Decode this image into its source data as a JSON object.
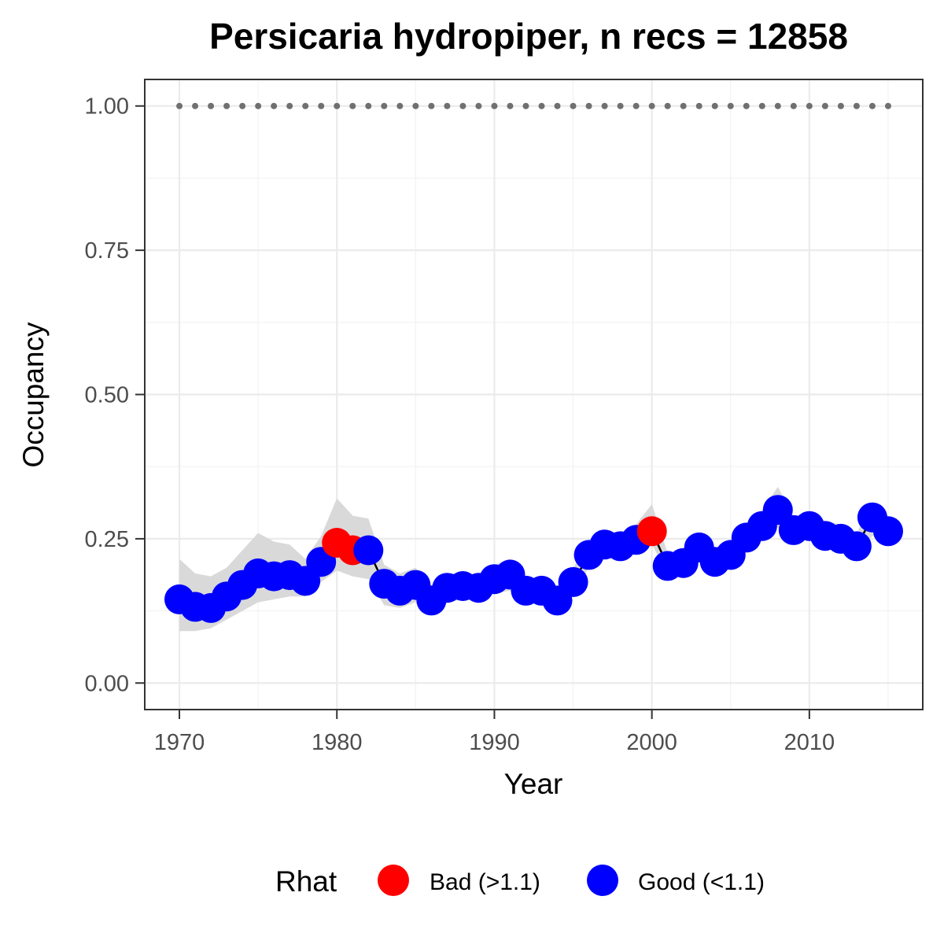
{
  "chart_data": {
    "type": "line",
    "title": "Persicaria hydropiper, n recs = 12858",
    "xlabel": "Year",
    "ylabel": "Occupancy",
    "xlim": [
      1967.8,
      2017.2
    ],
    "ylim": [
      -0.046,
      1.046
    ],
    "x_ticks": [
      1970,
      1980,
      1990,
      2000,
      2010
    ],
    "x_tick_labels": [
      "1970",
      "1980",
      "1990",
      "2000",
      "2010"
    ],
    "y_ticks": [
      0,
      0.25,
      0.5,
      0.75,
      1
    ],
    "y_tick_labels": [
      "0.00",
      "0.25",
      "0.50",
      "0.75",
      "1.00"
    ],
    "grid": true,
    "legend": {
      "title": "Rhat",
      "position": "bottom",
      "items": [
        {
          "label": "Bad (>1.1)",
          "color": "#ff0000"
        },
        {
          "label": "Good (<1.1)",
          "color": "#0000ff"
        }
      ]
    },
    "colors": {
      "bad": "#ff0000",
      "good": "#0000ff",
      "ribbon": "#d9d9d9",
      "line": "#000000",
      "reference": "#707070"
    },
    "reference_line": {
      "y": 1.0,
      "style": "dotted",
      "x": [
        1970,
        2015
      ]
    },
    "x": [
      1970,
      1971,
      1972,
      1973,
      1974,
      1975,
      1976,
      1977,
      1978,
      1979,
      1980,
      1981,
      1982,
      1983,
      1984,
      1985,
      1986,
      1987,
      1988,
      1989,
      1990,
      1991,
      1992,
      1993,
      1994,
      1995,
      1996,
      1997,
      1998,
      1999,
      2000,
      2001,
      2002,
      2003,
      2004,
      2005,
      2006,
      2007,
      2008,
      2009,
      2010,
      2011,
      2012,
      2013,
      2014,
      2015
    ],
    "occupancy": [
      0.145,
      0.132,
      0.13,
      0.15,
      0.17,
      0.19,
      0.185,
      0.187,
      0.177,
      0.21,
      0.243,
      0.23,
      0.23,
      0.172,
      0.16,
      0.17,
      0.143,
      0.165,
      0.168,
      0.165,
      0.18,
      0.188,
      0.16,
      0.16,
      0.143,
      0.175,
      0.222,
      0.24,
      0.237,
      0.248,
      0.263,
      0.203,
      0.208,
      0.235,
      0.21,
      0.222,
      0.252,
      0.272,
      0.3,
      0.265,
      0.272,
      0.255,
      0.25,
      0.237,
      0.287,
      0.263
    ],
    "lower": [
      0.09,
      0.09,
      0.095,
      0.11,
      0.125,
      0.14,
      0.145,
      0.15,
      0.15,
      0.175,
      0.195,
      0.185,
      0.18,
      0.135,
      0.13,
      0.14,
      0.12,
      0.14,
      0.145,
      0.145,
      0.155,
      0.16,
      0.14,
      0.14,
      0.13,
      0.155,
      0.2,
      0.22,
      0.22,
      0.225,
      0.24,
      0.19,
      0.195,
      0.215,
      0.195,
      0.205,
      0.23,
      0.25,
      0.27,
      0.245,
      0.25,
      0.235,
      0.23,
      0.22,
      0.255,
      0.24
    ],
    "upper": [
      0.215,
      0.19,
      0.185,
      0.2,
      0.23,
      0.26,
      0.245,
      0.24,
      0.215,
      0.255,
      0.32,
      0.29,
      0.285,
      0.205,
      0.19,
      0.2,
      0.17,
      0.19,
      0.19,
      0.185,
      0.205,
      0.215,
      0.185,
      0.18,
      0.165,
      0.2,
      0.245,
      0.265,
      0.26,
      0.275,
      0.31,
      0.225,
      0.225,
      0.255,
      0.23,
      0.24,
      0.275,
      0.3,
      0.34,
      0.29,
      0.295,
      0.28,
      0.275,
      0.26,
      0.31,
      0.29
    ],
    "rhat_status": [
      "Good",
      "Good",
      "Good",
      "Good",
      "Good",
      "Good",
      "Good",
      "Good",
      "Good",
      "Good",
      "Bad",
      "Bad",
      "Good",
      "Good",
      "Good",
      "Good",
      "Good",
      "Good",
      "Good",
      "Good",
      "Good",
      "Good",
      "Good",
      "Good",
      "Good",
      "Good",
      "Good",
      "Good",
      "Good",
      "Good",
      "Bad",
      "Good",
      "Good",
      "Good",
      "Good",
      "Good",
      "Good",
      "Good",
      "Good",
      "Good",
      "Good",
      "Good",
      "Good",
      "Good",
      "Good",
      "Good"
    ]
  }
}
